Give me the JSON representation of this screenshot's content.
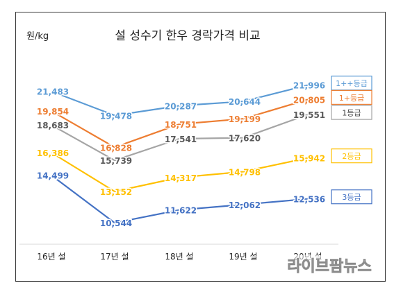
{
  "chart_data": {
    "type": "line",
    "title": "설 성수기 한우 경락가격 비교",
    "ylabel": "원/kg",
    "xlabel": "",
    "categories": [
      "16년 설",
      "17년 설",
      "18년 설",
      "19년 설",
      "20년 설"
    ],
    "ylim": [
      9000,
      24000
    ],
    "grid": false,
    "legend_placement": "right",
    "series": [
      {
        "name": "1++등급",
        "color": "#5b9bd5",
        "values": [
          21483,
          19478,
          20287,
          20644,
          21996
        ],
        "labels": [
          "21,483",
          "19,478",
          "20,287",
          "20,644",
          "21,996"
        ]
      },
      {
        "name": "1+등급",
        "color": "#ed7d31",
        "values": [
          19854,
          16828,
          18751,
          19199,
          20805
        ],
        "labels": [
          "19,854",
          "16,828",
          "18,751",
          "19,199",
          "20,805"
        ]
      },
      {
        "name": "1등급",
        "color": "#a5a5a5",
        "label_color": "#595959",
        "values": [
          18683,
          15739,
          17541,
          17620,
          19551
        ],
        "labels": [
          "18,683",
          "15,739",
          "17,541",
          "17,620",
          "19,551"
        ]
      },
      {
        "name": "2등급",
        "color": "#ffc000",
        "values": [
          16386,
          13152,
          14317,
          14798,
          15942
        ],
        "labels": [
          "16,386",
          "13,152",
          "14,317",
          "14,798",
          "15,942"
        ]
      },
      {
        "name": "3등급",
        "color": "#4472c4",
        "values": [
          14499,
          10544,
          11622,
          12062,
          12536
        ],
        "labels": [
          "14,499",
          "10,544",
          "11,622",
          "12,062",
          "12,536"
        ]
      }
    ]
  },
  "watermark": "라이브팜뉴스"
}
